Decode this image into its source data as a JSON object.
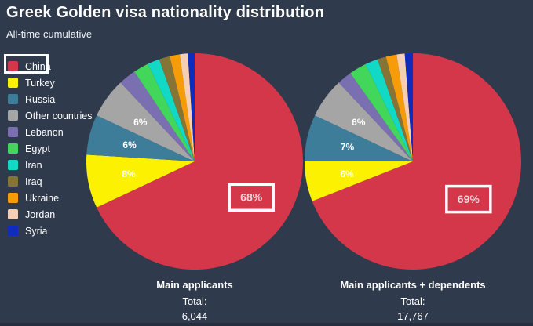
{
  "header": {
    "title": "Greek Golden visa nationality distribution",
    "subtitle": "All-time cumulative"
  },
  "colors": {
    "background": "#2f3a4c",
    "text": "#ffffff",
    "annotation_box_stroke": "#ffffff",
    "slice_label_color": "#ffffff",
    "boxed_label_color": "#f3d2d7"
  },
  "legend": {
    "items": [
      {
        "label": "China",
        "color": "#d5374a",
        "highlighted": true
      },
      {
        "label": "Turkey",
        "color": "#fbf100",
        "highlighted": false
      },
      {
        "label": "Russia",
        "color": "#3e7d99",
        "highlighted": false
      },
      {
        "label": "Other countries",
        "color": "#a5a5a5",
        "highlighted": false
      },
      {
        "label": "Lebanon",
        "color": "#7a6fb1",
        "highlighted": false
      },
      {
        "label": "Egypt",
        "color": "#42d75a",
        "highlighted": false
      },
      {
        "label": "Iran",
        "color": "#12d8c6",
        "highlighted": false
      },
      {
        "label": "Iraq",
        "color": "#867436",
        "highlighted": false
      },
      {
        "label": "Ukraine",
        "color": "#f59c08",
        "highlighted": false
      },
      {
        "label": "Jordan",
        "color": "#f6ceb3",
        "highlighted": false
      },
      {
        "label": "Syria",
        "color": "#0e2cbe",
        "highlighted": false
      }
    ]
  },
  "chart_data": [
    {
      "type": "pie",
      "name": "Main applicants",
      "total_label": "Total:",
      "total_value": "6,044",
      "slices": [
        {
          "country": "China",
          "value": 68.0,
          "label": "68%",
          "boxed": true
        },
        {
          "country": "Turkey",
          "value": 8.0,
          "label": "8%",
          "boxed": false
        },
        {
          "country": "Russia",
          "value": 6.0,
          "label": "6%",
          "boxed": false
        },
        {
          "country": "Other countries",
          "value": 6.0,
          "label": "6%",
          "boxed": false
        },
        {
          "country": "Lebanon",
          "value": 2.6
        },
        {
          "country": "Egypt",
          "value": 2.3
        },
        {
          "country": "Iran",
          "value": 1.8
        },
        {
          "country": "Iraq",
          "value": 1.6
        },
        {
          "country": "Ukraine",
          "value": 1.5
        },
        {
          "country": "Jordan",
          "value": 1.2
        },
        {
          "country": "Syria",
          "value": 1.0
        }
      ]
    },
    {
      "type": "pie",
      "name": "Main applicants + dependents",
      "total_label": "Total:",
      "total_value": "17,767",
      "slices": [
        {
          "country": "China",
          "value": 69.0,
          "label": "69%",
          "boxed": true
        },
        {
          "country": "Turkey",
          "value": 6.0,
          "label": "6%",
          "boxed": false
        },
        {
          "country": "Russia",
          "value": 7.0,
          "label": "7%",
          "boxed": false
        },
        {
          "country": "Other countries",
          "value": 6.0,
          "label": "6%",
          "boxed": false
        },
        {
          "country": "Lebanon",
          "value": 2.2
        },
        {
          "country": "Egypt",
          "value": 2.6
        },
        {
          "country": "Iran",
          "value": 1.9
        },
        {
          "country": "Iraq",
          "value": 1.3
        },
        {
          "country": "Ukraine",
          "value": 1.6
        },
        {
          "country": "Jordan",
          "value": 1.2
        },
        {
          "country": "Syria",
          "value": 1.2
        }
      ]
    }
  ]
}
